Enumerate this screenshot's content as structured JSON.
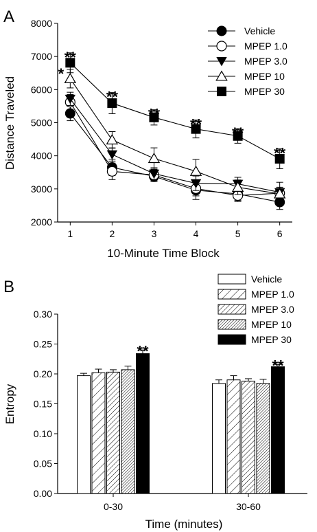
{
  "chart_data": [
    {
      "panel": "A",
      "type": "line",
      "xlabel": "10-Minute Time Block",
      "ylabel": "Distance Traveled",
      "x": [
        1,
        2,
        3,
        4,
        5,
        6
      ],
      "xlim": [
        0.7,
        6.3
      ],
      "ylim": [
        2000,
        8000
      ],
      "yticks": [
        2000,
        3000,
        4000,
        5000,
        6000,
        7000,
        8000
      ],
      "grid": false,
      "legend": "top-right",
      "series": [
        {
          "name": "Vehicle",
          "marker": "circle-filled",
          "values": [
            5280,
            3650,
            3380,
            2960,
            2850,
            2600
          ],
          "err": [
            220,
            250,
            160,
            280,
            200,
            220
          ]
        },
        {
          "name": "MPEP 1.0",
          "marker": "circle-open",
          "values": [
            5620,
            3530,
            3420,
            3010,
            2800,
            2870
          ],
          "err": [
            230,
            250,
            170,
            220,
            180,
            180
          ]
        },
        {
          "name": "MPEP 3.0",
          "marker": "triangle-down-filled",
          "values": [
            5720,
            4040,
            3460,
            3170,
            3150,
            2900
          ],
          "err": [
            200,
            200,
            180,
            220,
            200,
            300
          ]
        },
        {
          "name": "MPEP 10",
          "marker": "triangle-up-open",
          "values": [
            6330,
            4480,
            3920,
            3530,
            3050,
            2850
          ],
          "err": [
            280,
            250,
            320,
            360,
            220,
            200
          ]
        },
        {
          "name": "MPEP 30",
          "marker": "square-filled",
          "values": [
            6810,
            5590,
            5160,
            4810,
            4600,
            3910
          ],
          "err": [
            300,
            320,
            230,
            270,
            220,
            300
          ]
        }
      ],
      "annotations": [
        {
          "x": 1,
          "y": 7110,
          "text": "**"
        },
        {
          "x": 0.78,
          "y": 6610,
          "text": "*"
        },
        {
          "x": 2,
          "y": 5910,
          "text": "**"
        },
        {
          "x": 3,
          "y": 5390,
          "text": "**"
        },
        {
          "x": 4,
          "y": 5080,
          "text": "**"
        },
        {
          "x": 5,
          "y": 4820,
          "text": "**"
        },
        {
          "x": 6,
          "y": 4210,
          "text": "**"
        }
      ]
    },
    {
      "panel": "B",
      "type": "bar",
      "xlabel": "Time (minutes)",
      "ylabel": "Entropy",
      "categories": [
        "0-30",
        "30-60"
      ],
      "ylim": [
        0,
        0.3
      ],
      "yticks": [
        0.0,
        0.05,
        0.1,
        0.15,
        0.2,
        0.25,
        0.3
      ],
      "ytick_labels": [
        "0.00",
        "0.05",
        "0.10",
        "0.15",
        "0.20",
        "0.25",
        "0.30"
      ],
      "grid": false,
      "legend": "top-right",
      "series": [
        {
          "name": "Vehicle",
          "fill": "white",
          "values": [
            0.197,
            0.184
          ],
          "err": [
            0.004,
            0.006
          ]
        },
        {
          "name": "MPEP 1.0",
          "fill": "hatch-sparse",
          "values": [
            0.202,
            0.19
          ],
          "err": [
            0.006,
            0.007
          ]
        },
        {
          "name": "MPEP 3.0",
          "fill": "hatch-medium",
          "values": [
            0.203,
            0.188
          ],
          "err": [
            0.004,
            0.004
          ]
        },
        {
          "name": "MPEP 10",
          "fill": "hatch-dense",
          "values": [
            0.207,
            0.184
          ],
          "err": [
            0.006,
            0.007
          ]
        },
        {
          "name": "MPEP 30",
          "fill": "black",
          "values": [
            0.234,
            0.212
          ],
          "err": [
            0.006,
            0.004
          ]
        }
      ],
      "annotations": [
        {
          "category": 0,
          "series": 4,
          "y": 0.243,
          "text": "**"
        },
        {
          "category": 1,
          "series": 4,
          "y": 0.219,
          "text": "**"
        }
      ]
    }
  ]
}
